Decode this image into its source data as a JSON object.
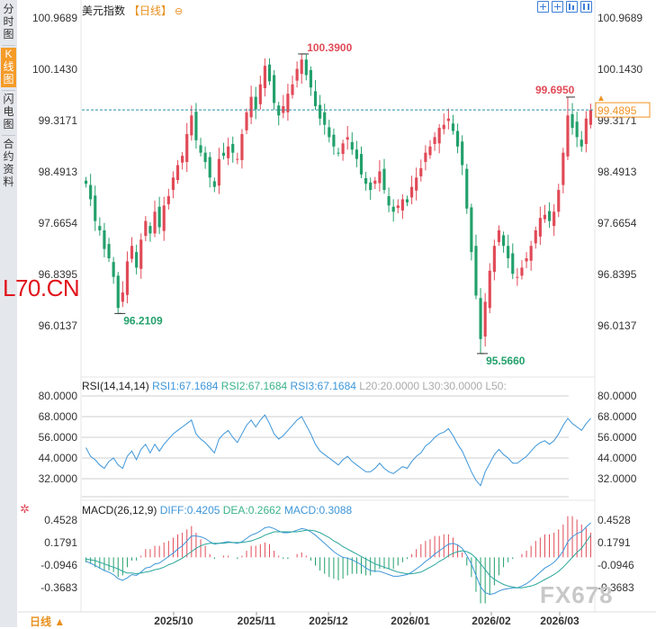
{
  "sidebar": {
    "items": [
      {
        "label": "分时图",
        "active": false
      },
      {
        "label": "K线图",
        "active": true
      },
      {
        "label": "闪电图",
        "active": false
      },
      {
        "label": "合约资料",
        "active": false
      }
    ]
  },
  "header": {
    "title": "美元指数",
    "period": "【日线】",
    "icon": "refresh-circle-icon",
    "tools": [
      "fit-icon",
      "move-icon",
      "bar-style-icon",
      "pause-icon"
    ]
  },
  "watermarks": {
    "left": "L70.CN",
    "right": "FX678"
  },
  "bottom": {
    "period_tab": "日线 ▲"
  },
  "colors": {
    "up": "#e14a57",
    "down": "#22a06b",
    "current": "#f29223",
    "rsi": "#3d96d9",
    "dif": "#3d96d9",
    "dea": "#2aa79b"
  },
  "chart_data": [
    {
      "type": "candlestick",
      "title": "美元指数",
      "y_ticks": [
        "100.9689",
        "100.1430",
        "99.3171",
        "98.4913",
        "97.6654",
        "96.8395",
        "96.0137"
      ],
      "ylim": [
        95.6,
        100.9689
      ],
      "x_ticks": [
        "2025/10",
        "2025/11",
        "2025/12",
        "2026/01",
        "2026/02",
        "2026/03"
      ],
      "annotations": {
        "high": "100.3900",
        "low1": "96.2109",
        "low2": "95.5660",
        "recent_high": "99.6950",
        "current": "99.4895"
      },
      "closes": [
        98.3,
        98.05,
        97.7,
        97.55,
        97.25,
        97.1,
        96.8,
        96.3,
        96.55,
        97.05,
        97.3,
        96.95,
        97.4,
        97.7,
        97.5,
        97.85,
        97.6,
        97.95,
        98.1,
        98.4,
        98.6,
        98.75,
        99.1,
        99.4,
        99.0,
        98.8,
        98.65,
        98.4,
        98.25,
        98.7,
        98.75,
        98.9,
        98.8,
        98.7,
        99.1,
        99.45,
        99.7,
        99.5,
        99.9,
        100.2,
        99.95,
        99.6,
        99.4,
        99.55,
        99.75,
        99.9,
        100.15,
        100.3,
        100.05,
        99.85,
        99.55,
        99.35,
        99.25,
        99.05,
        98.9,
        98.8,
        98.95,
        99.05,
        98.85,
        98.7,
        98.45,
        98.3,
        98.2,
        98.35,
        98.5,
        98.2,
        97.95,
        97.85,
        97.95,
        98.05,
        98.0,
        98.25,
        98.4,
        98.55,
        98.8,
        98.9,
        99.05,
        99.2,
        99.25,
        99.35,
        99.15,
        98.9,
        98.6,
        97.9,
        97.2,
        96.5,
        95.8,
        96.4,
        96.9,
        97.3,
        97.55,
        97.3,
        97.1,
        96.85,
        96.8,
        96.95,
        97.1,
        97.3,
        97.55,
        97.75,
        97.8,
        97.7,
        97.85,
        98.2,
        98.8,
        99.4,
        99.2,
        99.05,
        98.9,
        99.35,
        99.49
      ],
      "rsi": {
        "label": "RSI(14,14,14)",
        "rsi1": "RSI1:67.1684",
        "rsi2": "RSI2:67.1684",
        "rsi3": "RSI3:67.1684",
        "l20": "L20:20.0000",
        "l30": "L30:30.0000",
        "l50": "L50:",
        "y_ticks": [
          "80.0000",
          "68.0000",
          "56.0000",
          "44.0000",
          "32.0000"
        ],
        "ylim": [
          26,
          84
        ],
        "values": [
          50,
          45,
          43,
          40,
          38,
          42,
          44,
          40,
          38,
          45,
          48,
          43,
          49,
          52,
          47,
          52,
          48,
          52,
          55,
          58,
          60,
          62,
          64,
          66,
          58,
          55,
          53,
          50,
          47,
          55,
          58,
          60,
          56,
          53,
          58,
          63,
          66,
          62,
          66,
          69,
          64,
          58,
          55,
          57,
          60,
          63,
          66,
          68,
          63,
          58,
          52,
          48,
          46,
          44,
          42,
          40,
          43,
          45,
          42,
          40,
          38,
          36,
          36,
          38,
          41,
          38,
          36,
          35,
          37,
          39,
          38,
          42,
          45,
          47,
          51,
          53,
          56,
          58,
          59,
          61,
          57,
          52,
          48,
          42,
          36,
          31,
          28,
          36,
          41,
          46,
          49,
          46,
          44,
          41,
          41,
          43,
          45,
          48,
          51,
          53,
          54,
          52,
          54,
          58,
          63,
          67,
          64,
          62,
          60,
          64,
          67
        ]
      },
      "macd": {
        "label": "MACD(26,12,9)",
        "diff": "DIFF:0.4205",
        "dea": "DEA:0.2662",
        "macd_value": "MACD:0.3088",
        "y_ticks": [
          "0.4528",
          "0.1791",
          "-0.0946",
          "-0.3683"
        ],
        "ylim": [
          -0.57,
          0.58
        ],
        "dif_values": [
          -0.05,
          -0.07,
          -0.1,
          -0.13,
          -0.16,
          -0.18,
          -0.21,
          -0.26,
          -0.28,
          -0.25,
          -0.21,
          -0.22,
          -0.18,
          -0.13,
          -0.12,
          -0.08,
          -0.07,
          -0.03,
          0.01,
          0.05,
          0.1,
          0.14,
          0.2,
          0.26,
          0.26,
          0.25,
          0.23,
          0.19,
          0.16,
          0.17,
          0.18,
          0.19,
          0.18,
          0.17,
          0.19,
          0.23,
          0.27,
          0.29,
          0.32,
          0.36,
          0.37,
          0.35,
          0.32,
          0.3,
          0.3,
          0.31,
          0.33,
          0.35,
          0.34,
          0.31,
          0.27,
          0.22,
          0.17,
          0.12,
          0.07,
          0.03,
          0.0,
          -0.01,
          -0.03,
          -0.06,
          -0.09,
          -0.13,
          -0.16,
          -0.17,
          -0.17,
          -0.19,
          -0.21,
          -0.23,
          -0.23,
          -0.22,
          -0.21,
          -0.18,
          -0.14,
          -0.1,
          -0.05,
          -0.01,
          0.04,
          0.08,
          0.12,
          0.16,
          0.17,
          0.15,
          0.11,
          0.02,
          -0.08,
          -0.22,
          -0.36,
          -0.43,
          -0.45,
          -0.44,
          -0.41,
          -0.39,
          -0.38,
          -0.37,
          -0.37,
          -0.35,
          -0.32,
          -0.28,
          -0.23,
          -0.18,
          -0.13,
          -0.1,
          -0.06,
          0.0,
          0.08,
          0.19,
          0.25,
          0.29,
          0.31,
          0.37,
          0.42
        ],
        "dea_values": [
          -0.02,
          -0.03,
          -0.04,
          -0.06,
          -0.08,
          -0.1,
          -0.12,
          -0.14,
          -0.17,
          -0.19,
          -0.19,
          -0.2,
          -0.19,
          -0.18,
          -0.17,
          -0.15,
          -0.14,
          -0.12,
          -0.09,
          -0.07,
          -0.04,
          -0.01,
          0.03,
          0.07,
          0.11,
          0.14,
          0.16,
          0.17,
          0.17,
          0.17,
          0.17,
          0.18,
          0.18,
          0.18,
          0.18,
          0.19,
          0.2,
          0.22,
          0.24,
          0.27,
          0.29,
          0.31,
          0.31,
          0.31,
          0.31,
          0.31,
          0.31,
          0.32,
          0.33,
          0.33,
          0.32,
          0.3,
          0.27,
          0.24,
          0.2,
          0.17,
          0.13,
          0.1,
          0.07,
          0.04,
          0.01,
          -0.02,
          -0.05,
          -0.08,
          -0.1,
          -0.12,
          -0.14,
          -0.16,
          -0.18,
          -0.19,
          -0.2,
          -0.2,
          -0.19,
          -0.18,
          -0.15,
          -0.12,
          -0.09,
          -0.05,
          -0.02,
          0.02,
          0.05,
          0.07,
          0.08,
          0.07,
          0.04,
          -0.01,
          -0.08,
          -0.15,
          -0.22,
          -0.27,
          -0.3,
          -0.33,
          -0.35,
          -0.36,
          -0.37,
          -0.37,
          -0.36,
          -0.35,
          -0.33,
          -0.3,
          -0.27,
          -0.24,
          -0.21,
          -0.17,
          -0.12,
          -0.06,
          0.0,
          0.06,
          0.11,
          0.19,
          0.27
        ]
      }
    }
  ]
}
